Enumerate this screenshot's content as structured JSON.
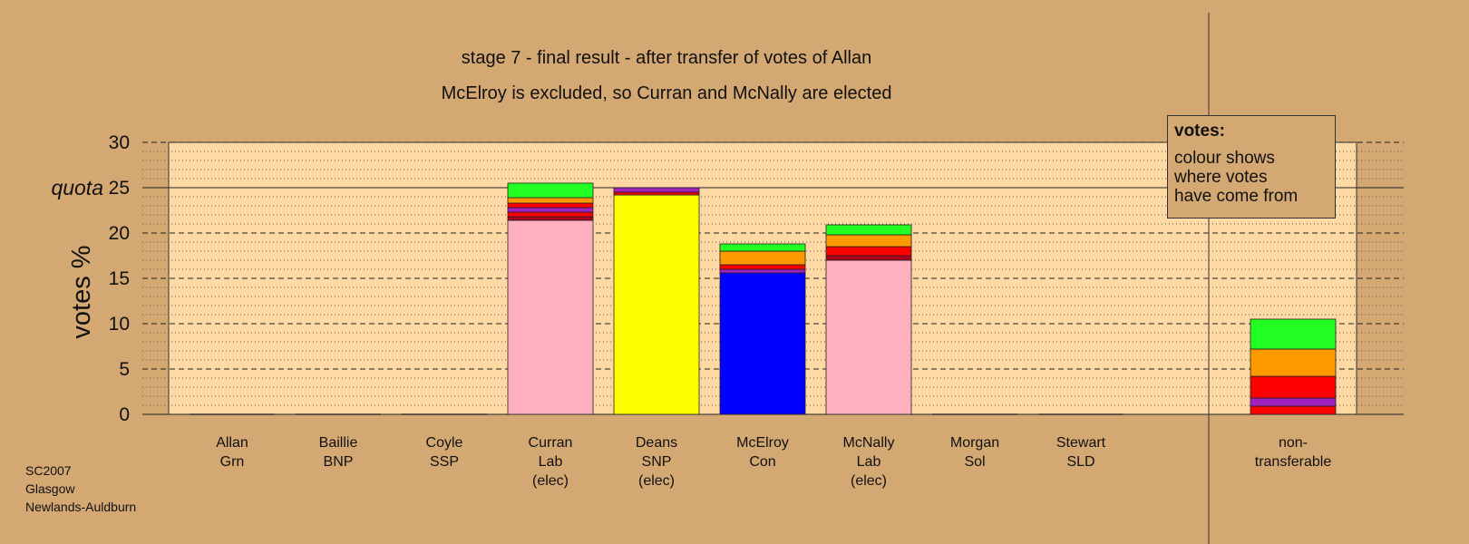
{
  "chart_data": {
    "type": "bar",
    "stacked": true,
    "title": "stage 7 - final result - after transfer of votes of Allan",
    "subtitle": "McElroy is excluded, so Curran and McNally are elected",
    "ylabel": "votes %",
    "quota_label": "quota",
    "quota": 25,
    "ylim": [
      0,
      30
    ],
    "yticks": [
      0,
      5,
      10,
      15,
      20,
      25,
      30
    ],
    "grid": true,
    "legend": {
      "title": "votes:",
      "lines": [
        "colour shows",
        "where votes",
        "have come from"
      ],
      "placement": "top-right"
    },
    "footer": [
      "SC2007",
      "Glasgow",
      "Newlands-Auldburn"
    ],
    "categories": [
      {
        "lines": [
          "Allan",
          "Grn"
        ],
        "segments": []
      },
      {
        "lines": [
          "Baillie",
          "BNP"
        ],
        "segments": []
      },
      {
        "lines": [
          "Coyle",
          "SSP"
        ],
        "segments": []
      },
      {
        "lines": [
          "Curran",
          "Lab",
          "(elec)"
        ],
        "segments": [
          {
            "value": 21.4,
            "color": "#ffb0c0"
          },
          {
            "value": 0.4,
            "color": "#b00020"
          },
          {
            "value": 0.5,
            "color": "#ff0000"
          },
          {
            "value": 0.5,
            "color": "#a020c0"
          },
          {
            "value": 0.5,
            "color": "#ff0000"
          },
          {
            "value": 0.6,
            "color": "#ff9900"
          },
          {
            "value": 1.6,
            "color": "#22ff22"
          }
        ]
      },
      {
        "lines": [
          "Deans",
          "SNP",
          "(elec)"
        ],
        "segments": [
          {
            "value": 24.2,
            "color": "#ffff00"
          },
          {
            "value": 0.3,
            "color": "#ff0000"
          },
          {
            "value": 0.5,
            "color": "#a020c0"
          }
        ]
      },
      {
        "lines": [
          "McElroy",
          "Con"
        ],
        "segments": [
          {
            "value": 15.6,
            "color": "#0000ff"
          },
          {
            "value": 0.4,
            "color": "#a020c0"
          },
          {
            "value": 0.5,
            "color": "#ff0000"
          },
          {
            "value": 1.5,
            "color": "#ff9900"
          },
          {
            "value": 0.8,
            "color": "#22ff22"
          }
        ]
      },
      {
        "lines": [
          "McNally",
          "Lab",
          "(elec)"
        ],
        "segments": [
          {
            "value": 17.0,
            "color": "#ffb0c0"
          },
          {
            "value": 0.5,
            "color": "#b00020"
          },
          {
            "value": 1.0,
            "color": "#ff0000"
          },
          {
            "value": 1.3,
            "color": "#ff9900"
          },
          {
            "value": 1.1,
            "color": "#22ff22"
          }
        ]
      },
      {
        "lines": [
          "Morgan",
          "Sol"
        ],
        "segments": []
      },
      {
        "lines": [
          "Stewart",
          "SLD"
        ],
        "segments": []
      },
      {
        "lines": [
          "non-",
          "transferable"
        ],
        "segments": [
          {
            "value": 0.9,
            "color": "#ff0000"
          },
          {
            "value": 0.9,
            "color": "#a020c0"
          },
          {
            "value": 2.4,
            "color": "#ff0000"
          },
          {
            "value": 3.0,
            "color": "#ff9900"
          },
          {
            "value": 3.3,
            "color": "#22ff22"
          }
        ]
      }
    ]
  },
  "colors": {
    "background": "#d4a873",
    "plot_area": "#ffd9a3"
  }
}
